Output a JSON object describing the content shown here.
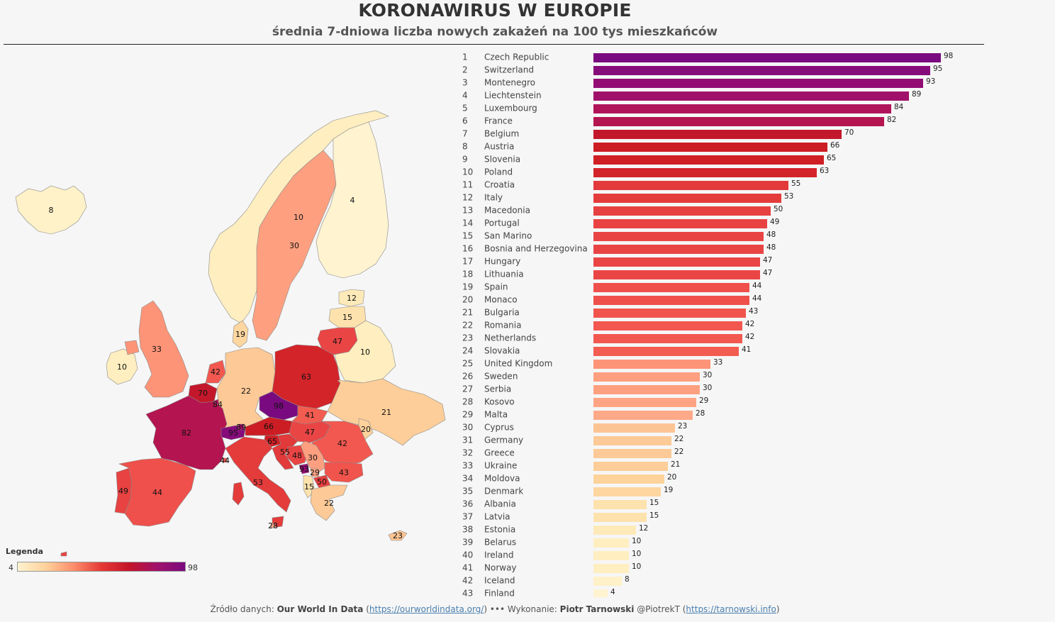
{
  "header": {
    "title": "KORONAWIRUS W EUROPIE",
    "subtitle": "średnia 7-dniowa liczba nowych zakażeń na 100 tys mieszkańców"
  },
  "legend": {
    "title": "Legenda",
    "min_label": "4",
    "max_label": "98",
    "stops": [
      "#fff3d0",
      "#fdd29b",
      "#fc8d6b",
      "#e53935",
      "#c4152a",
      "#a0116a",
      "#7a0a7f"
    ]
  },
  "footer": {
    "source_prefix": "Źródło danych: ",
    "source_name": "Our World In Data",
    "source_url": "https://ourworldindata.org/",
    "separator": " ••• Wykonanie: ",
    "author_name": "Piotr Tarnowski",
    "author_handle": " @PiotrekT ",
    "author_url": "https://tarnowski.info"
  },
  "map": {
    "labels": [
      {
        "country": "Iceland",
        "text": "8"
      },
      {
        "country": "Norway",
        "text": "10"
      },
      {
        "country": "Sweden",
        "text": "30"
      },
      {
        "country": "Finland",
        "text": "4"
      },
      {
        "country": "Estonia",
        "text": "12"
      },
      {
        "country": "Latvia",
        "text": "15"
      },
      {
        "country": "Lithuania",
        "text": "47"
      },
      {
        "country": "Denmark",
        "text": "19"
      },
      {
        "country": "Belarus",
        "text": "10"
      },
      {
        "country": "Ireland",
        "text": "10"
      },
      {
        "country": "United Kingdom",
        "text": "33"
      },
      {
        "country": "Netherlands",
        "text": "42"
      },
      {
        "country": "Belgium",
        "text": "70"
      },
      {
        "country": "Luxembourg",
        "text": "84"
      },
      {
        "country": "Germany",
        "text": "22"
      },
      {
        "country": "Poland",
        "text": "63"
      },
      {
        "country": "Czech Republic",
        "text": "98"
      },
      {
        "country": "Slovakia",
        "text": "41"
      },
      {
        "country": "Ukraine",
        "text": "21"
      },
      {
        "country": "France",
        "text": "82"
      },
      {
        "country": "Switzerland",
        "text": "95"
      },
      {
        "country": "Liechtenstein",
        "text": "89"
      },
      {
        "country": "Austria",
        "text": "66"
      },
      {
        "country": "Hungary",
        "text": "47"
      },
      {
        "country": "Moldova",
        "text": "20"
      },
      {
        "country": "Romania",
        "text": "42"
      },
      {
        "country": "Slovenia",
        "text": "65"
      },
      {
        "country": "Croatia",
        "text": "55"
      },
      {
        "country": "Bosnia and Herzegovina",
        "text": "48"
      },
      {
        "country": "Serbia",
        "text": "30"
      },
      {
        "country": "Montenegro",
        "text": "93"
      },
      {
        "country": "Kosovo",
        "text": "29"
      },
      {
        "country": "Bulgaria",
        "text": "43"
      },
      {
        "country": "Macedonia",
        "text": "50"
      },
      {
        "country": "Albania",
        "text": "15"
      },
      {
        "country": "Greece",
        "text": "22"
      },
      {
        "country": "Italy",
        "text": "53"
      },
      {
        "country": "Monaco",
        "text": "44"
      },
      {
        "country": "Portugal",
        "text": "49"
      },
      {
        "country": "Spain",
        "text": "44"
      },
      {
        "country": "Malta",
        "text": "28"
      },
      {
        "country": "Cyprus",
        "text": "23"
      }
    ]
  },
  "chart_data": {
    "type": "bar",
    "orientation": "horizontal",
    "title": "KORONAWIRUS W EUROPIE",
    "subtitle": "średnia 7-dniowa liczba nowych zakażeń na 100 tys mieszkańców",
    "xlim": [
      0,
      100
    ],
    "grid": false,
    "color_scale": {
      "min": 4,
      "max": 98
    },
    "ranks": [
      "1",
      "2",
      "3",
      "4",
      "5",
      "6",
      "7",
      "8",
      "9",
      "10",
      "11",
      "12",
      "13",
      "14",
      "15",
      "16",
      "17",
      "18",
      "19",
      "20",
      "21",
      "22",
      "23",
      "24",
      "25",
      "26",
      "27",
      "28",
      "29",
      "30",
      "31",
      "32",
      "33",
      "34",
      "35",
      "36",
      "37",
      "38",
      "39",
      "40",
      "41",
      "42",
      "43"
    ],
    "categories": [
      "Czech Republic",
      "Switzerland",
      "Montenegro",
      "Liechtenstein",
      "Luxembourg",
      "France",
      "Belgium",
      "Austria",
      "Slovenia",
      "Poland",
      "Croatia",
      "Italy",
      "Macedonia",
      "Portugal",
      "San Marino",
      "Bosnia and Herzegovina",
      "Hungary",
      "Lithuania",
      "Spain",
      "Monaco",
      "Bulgaria",
      "Romania",
      "Netherlands",
      "Slovakia",
      "United Kingdom",
      "Sweden",
      "Serbia",
      "Kosovo",
      "Malta",
      "Cyprus",
      "Germany",
      "Greece",
      "Ukraine",
      "Moldova",
      "Denmark",
      "Albania",
      "Latvia",
      "Estonia",
      "Belarus",
      "Ireland",
      "Norway",
      "Iceland",
      "Finland"
    ],
    "values": [
      98,
      95,
      93,
      89,
      84,
      82,
      70,
      66,
      65,
      63,
      55,
      53,
      50,
      49,
      48,
      48,
      47,
      47,
      44,
      44,
      43,
      42,
      42,
      41,
      33,
      30,
      30,
      29,
      28,
      23,
      22,
      22,
      21,
      20,
      19,
      15,
      15,
      12,
      10,
      10,
      10,
      8,
      4
    ],
    "colors": [
      "#7a0a7f",
      "#860b7b",
      "#920c74",
      "#a0116a",
      "#b0135a",
      "#b4144f",
      "#c3182b",
      "#cc1d24",
      "#cf1f24",
      "#d3242a",
      "#e2393a",
      "#e43b3b",
      "#e64040",
      "#e84242",
      "#e94444",
      "#e94444",
      "#ea4545",
      "#ea4545",
      "#ef504b",
      "#ef504b",
      "#f0544c",
      "#f2584f",
      "#f2584f",
      "#f35c50",
      "#fd9477",
      "#fea080",
      "#fea080",
      "#fea484",
      "#fea988",
      "#fdc493",
      "#fdc996",
      "#fdc996",
      "#fdce99",
      "#fdd29b",
      "#fed6a0",
      "#fee2ad",
      "#fee2ad",
      "#feeab8",
      "#ffeec0",
      "#ffeec0",
      "#ffeec0",
      "#fff1c8",
      "#fff3d0"
    ]
  }
}
